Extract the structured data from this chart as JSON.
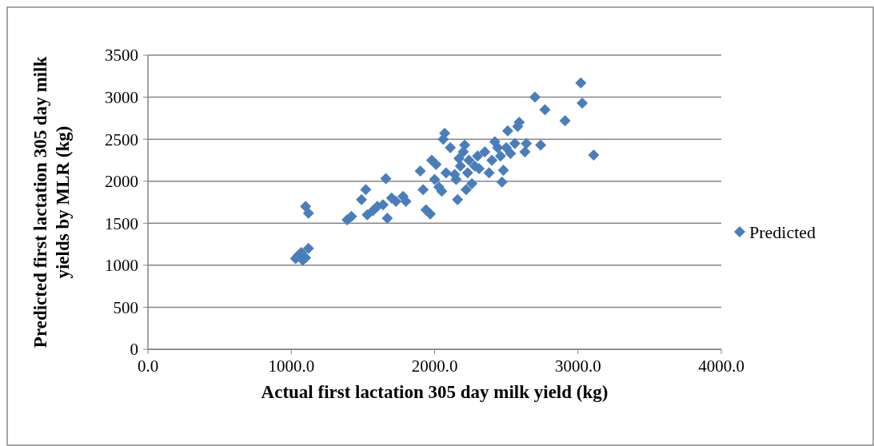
{
  "chart_data": {
    "type": "scatter",
    "xlabel": "Actual first lactation 305 day milk yield (kg)",
    "ylabel": "Predicted first lactation 305 day milk yields by MLR (kg)",
    "xlim": [
      0,
      4000
    ],
    "ylim": [
      0,
      3500
    ],
    "xticks": [
      {
        "value": 0,
        "label": "0.0"
      },
      {
        "value": 1000,
        "label": "1000.0"
      },
      {
        "value": 2000,
        "label": "2000.0"
      },
      {
        "value": 3000,
        "label": "3000.0"
      },
      {
        "value": 4000,
        "label": "4000.0"
      }
    ],
    "yticks": [
      0,
      500,
      1000,
      1500,
      2000,
      2500,
      3000,
      3500
    ],
    "grid": "y",
    "legend": "right",
    "marker": "diamond",
    "series": [
      {
        "name": "Predicted",
        "color": "#4a7ebb",
        "x": [
          1030,
          1050,
          1080,
          1100,
          1100,
          1120,
          1120,
          1070,
          1390,
          1420,
          1490,
          1520,
          1530,
          1570,
          1600,
          1640,
          1660,
          1670,
          1700,
          1730,
          1780,
          1800,
          1900,
          1920,
          1940,
          1970,
          1980,
          2000,
          2010,
          2030,
          2050,
          2060,
          2070,
          2080,
          2110,
          2140,
          2150,
          2160,
          2170,
          2180,
          2200,
          2210,
          2220,
          2230,
          2240,
          2260,
          2280,
          2300,
          2310,
          2350,
          2380,
          2400,
          2420,
          2440,
          2460,
          2470,
          2480,
          2500,
          2510,
          2530,
          2560,
          2580,
          2590,
          2630,
          2640,
          2700,
          2740,
          2770,
          2910,
          3020,
          3030,
          3110
        ],
        "values": [
          1080,
          1120,
          1060,
          1090,
          1700,
          1620,
          1200,
          1150,
          1540,
          1580,
          1780,
          1900,
          1600,
          1650,
          1700,
          1720,
          2030,
          1560,
          1800,
          1760,
          1820,
          1760,
          2120,
          1900,
          1660,
          1610,
          2250,
          2020,
          2200,
          1930,
          1880,
          2500,
          2570,
          2100,
          2400,
          2080,
          2020,
          1780,
          2270,
          2180,
          2350,
          2430,
          1900,
          2100,
          2250,
          1970,
          2180,
          2300,
          2150,
          2350,
          2100,
          2250,
          2470,
          2400,
          2300,
          1990,
          2130,
          2400,
          2600,
          2330,
          2450,
          2650,
          2700,
          2350,
          2450,
          3000,
          2430,
          2850,
          2720,
          3170,
          2930,
          2310
        ]
      }
    ]
  }
}
